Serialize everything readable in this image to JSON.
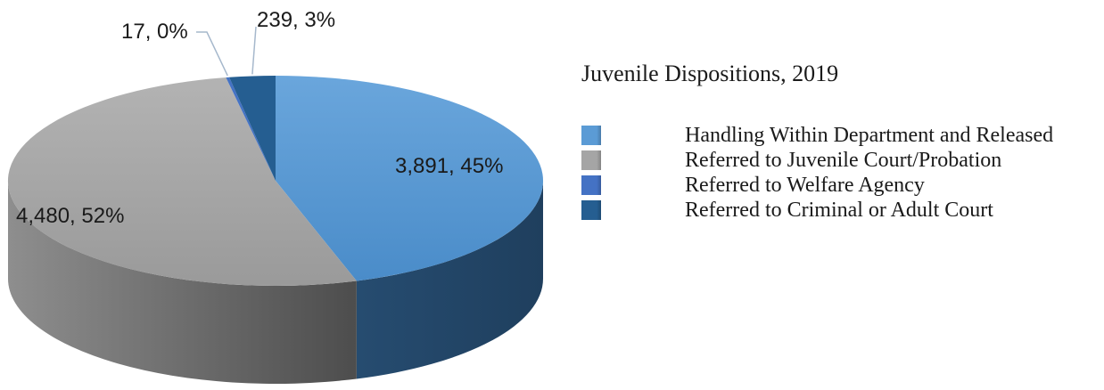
{
  "chart_data": {
    "type": "pie",
    "title": "Juvenile Dispositions, 2019",
    "categories": [
      "Handling Within Department and Released",
      "Referred to Juvenile Court/Probation",
      "Referred to Welfare Agency",
      "Referred to Criminal or Adult Court"
    ],
    "values": [
      3891,
      4480,
      17,
      239
    ],
    "data_labels": [
      "3,891, 45%",
      "4,480, 52%",
      "17, 0%",
      "239, 3%"
    ],
    "colors": [
      "#5b9bd5",
      "#a5a5a5",
      "#4472c4",
      "#255e91"
    ],
    "legend_position": "right",
    "style": "3d"
  }
}
